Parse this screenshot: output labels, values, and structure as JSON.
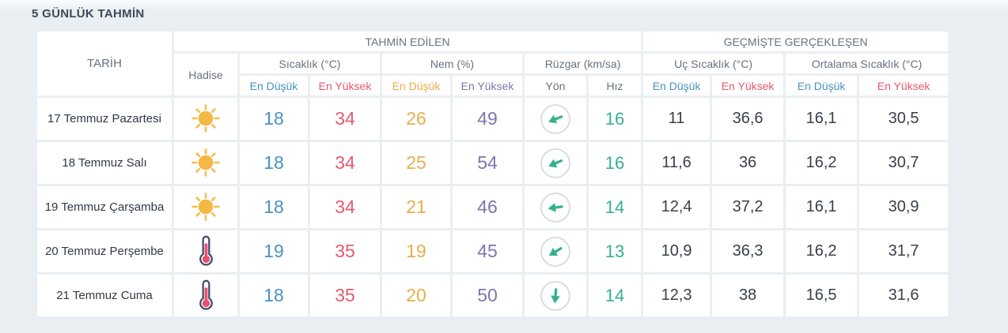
{
  "title": "5 GÜNLÜK TAHMİN",
  "table": {
    "headers": {
      "date": "TARİH",
      "forecast_group": "TAHMİN EDİLEN",
      "past_group": "GEÇMİŞTE GERÇEKLEŞEN",
      "condition": "Hadise",
      "temperature": "Sıcaklık (°C)",
      "humidity": "Nem (%)",
      "wind": "Rüzgar (km/sa)",
      "extreme_temperature": "Uç Sıcaklık (°C)",
      "average_temperature": "Ortalama Sıcaklık (°C)",
      "min": "En Düşük",
      "max": "En Yüksek",
      "direction": "Yön",
      "speed": "Hız"
    }
  },
  "rows": [
    {
      "date": "17 Temmuz Pazartesi",
      "condition": "sunny",
      "temp_min": "18",
      "temp_max": "34",
      "humidity_min": "26",
      "humidity_max": "49",
      "wind_rotation_deg": 158,
      "wind_speed": "16",
      "past_extreme_min": "11",
      "past_extreme_max": "36,6",
      "past_average_min": "16,1",
      "past_average_max": "30,5"
    },
    {
      "date": "18 Temmuz Salı",
      "condition": "sunny",
      "temp_min": "18",
      "temp_max": "34",
      "humidity_min": "25",
      "humidity_max": "54",
      "wind_rotation_deg": 156,
      "wind_speed": "16",
      "past_extreme_min": "11,6",
      "past_extreme_max": "36",
      "past_average_min": "16,2",
      "past_average_max": "30,7"
    },
    {
      "date": "19 Temmuz Çarşamba",
      "condition": "sunny",
      "temp_min": "18",
      "temp_max": "34",
      "humidity_min": "21",
      "humidity_max": "46",
      "wind_rotation_deg": 172,
      "wind_speed": "14",
      "past_extreme_min": "12,4",
      "past_extreme_max": "37,2",
      "past_average_min": "16,1",
      "past_average_max": "30,9"
    },
    {
      "date": "20 Temmuz Perşembe",
      "condition": "hot",
      "temp_min": "19",
      "temp_max": "35",
      "humidity_min": "19",
      "humidity_max": "45",
      "wind_rotation_deg": 148,
      "wind_speed": "13",
      "past_extreme_min": "10,9",
      "past_extreme_max": "36,3",
      "past_average_min": "16,2",
      "past_average_max": "31,7"
    },
    {
      "date": "21 Temmuz Cuma",
      "condition": "hot",
      "temp_min": "18",
      "temp_max": "35",
      "humidity_min": "20",
      "humidity_max": "50",
      "wind_rotation_deg": 95,
      "wind_speed": "14",
      "past_extreme_min": "12,3",
      "past_extreme_max": "38",
      "past_average_min": "16,5",
      "past_average_max": "31,6"
    }
  ],
  "icons": {
    "sunny": "sun-icon",
    "hot": "thermometer-icon",
    "wind_direction": "wind-direction-arrow-icon"
  },
  "colors": {
    "background": "#e9eef2",
    "cell_background": "#ffffff",
    "title_text": "#3b4a5a",
    "header_text": "#67727e",
    "date_text": "#2f3947",
    "past_value_text": "#39404b",
    "temp_min": "#4793c3",
    "temp_max": "#e9596d",
    "humidity_min": "#e9ae4a",
    "humidity_max": "#7f74b0",
    "wind": "#35b08f",
    "wind_circle_border": "#d9dde2",
    "sun": "#f5b844",
    "sun_rays": "#f6bd4f",
    "thermometer_outline": "#424e6e",
    "thermometer_fill": "#e8506e"
  }
}
